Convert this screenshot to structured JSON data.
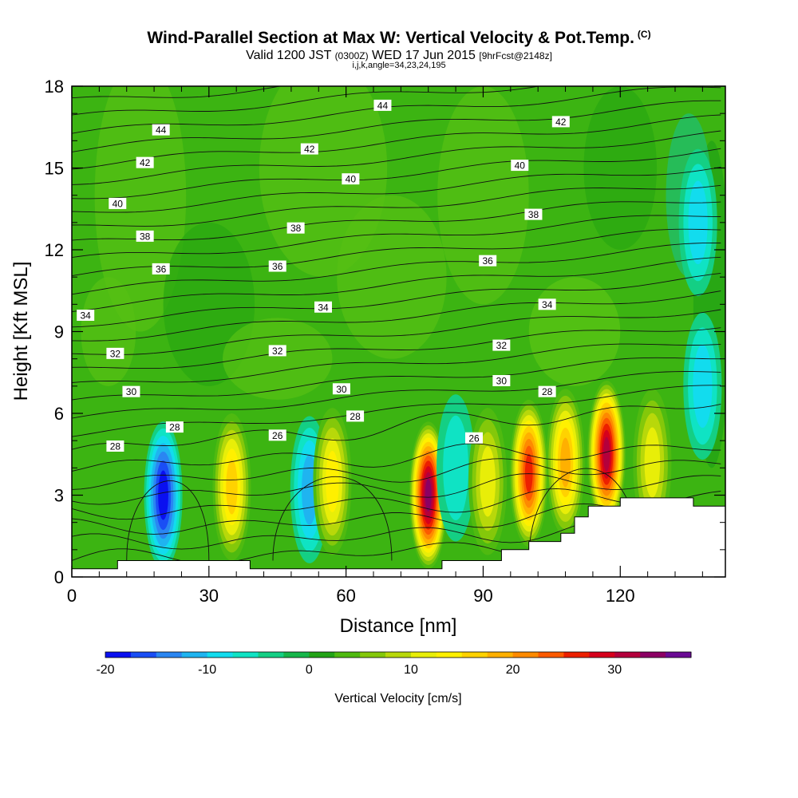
{
  "header": {
    "title": "Wind-Parallel Section at Max W: Vertical Velocity & Pot.Temp.",
    "title_mark": "(C)",
    "valid_prefix": "Valid 1200 JST",
    "valid_utc": "(0300Z)",
    "valid_date": "WED 17 Jun 2015",
    "forecast": "[9hrFcst@2148z]",
    "indices": "i,j,k,angle=34,23,24,195"
  },
  "chart_data": {
    "type": "heatmap",
    "xlabel": "Distance [nm]",
    "ylabel": "Height [Kft MSL]",
    "xlim": [
      0,
      143
    ],
    "ylim": [
      0,
      18
    ],
    "x_ticks": [
      "0",
      "30",
      "60",
      "90",
      "120"
    ],
    "y_ticks": [
      "0",
      "3",
      "6",
      "9",
      "12",
      "15",
      "18"
    ],
    "grid": false,
    "terrain_profile": [
      [
        0,
        0.3
      ],
      [
        10,
        0.3
      ],
      [
        10,
        0.6
      ],
      [
        39,
        0.6
      ],
      [
        39,
        0.3
      ],
      [
        81,
        0.3
      ],
      [
        81,
        0.6
      ],
      [
        94,
        0.6
      ],
      [
        94,
        1
      ],
      [
        100,
        1
      ],
      [
        100,
        1.3
      ],
      [
        107,
        1.3
      ],
      [
        107,
        1.6
      ],
      [
        110,
        1.6
      ],
      [
        110,
        2.2
      ],
      [
        113,
        2.2
      ],
      [
        113,
        2.6
      ],
      [
        120,
        2.6
      ],
      [
        120,
        2.9
      ],
      [
        136,
        2.9
      ],
      [
        136,
        2.6
      ],
      [
        143,
        2.6
      ]
    ],
    "vertical_velocity_cores": [
      {
        "x": 20,
        "y": 3.0,
        "w_cms": -19
      },
      {
        "x": 35,
        "y": 3.3,
        "w_cms": 17
      },
      {
        "x": 52,
        "y": 3.2,
        "w_cms": -12
      },
      {
        "x": 57,
        "y": 3.5,
        "w_cms": 14
      },
      {
        "x": 78,
        "y": 3.0,
        "w_cms": 33
      },
      {
        "x": 84,
        "y": 4.0,
        "w_cms": -6
      },
      {
        "x": 91,
        "y": 3.5,
        "w_cms": 11
      },
      {
        "x": 100,
        "y": 3.8,
        "w_cms": 26
      },
      {
        "x": 108,
        "y": 4.2,
        "w_cms": 18
      },
      {
        "x": 117,
        "y": 4.5,
        "w_cms": 32
      },
      {
        "x": 127,
        "y": 4.2,
        "w_cms": 12
      },
      {
        "x": 138,
        "y": 7.0,
        "w_cms": -8
      },
      {
        "x": 137,
        "y": 13.0,
        "w_cms": -9
      }
    ],
    "theta_contour_labels": [
      {
        "text": "44",
        "x": 19.5,
        "y": 16.4
      },
      {
        "text": "44",
        "x": 68,
        "y": 17.3
      },
      {
        "text": "42",
        "x": 107,
        "y": 16.7
      },
      {
        "text": "42",
        "x": 52,
        "y": 15.7
      },
      {
        "text": "42",
        "x": 16,
        "y": 15.2
      },
      {
        "text": "40",
        "x": 61,
        "y": 14.6
      },
      {
        "text": "40",
        "x": 98,
        "y": 15.1
      },
      {
        "text": "40",
        "x": 10,
        "y": 13.7
      },
      {
        "text": "38",
        "x": 16,
        "y": 12.5
      },
      {
        "text": "38",
        "x": 49,
        "y": 12.8
      },
      {
        "text": "38",
        "x": 101,
        "y": 13.3
      },
      {
        "text": "36",
        "x": 19.5,
        "y": 11.3
      },
      {
        "text": "36",
        "x": 45,
        "y": 11.4
      },
      {
        "text": "36",
        "x": 91,
        "y": 11.6
      },
      {
        "text": "34",
        "x": 3,
        "y": 9.6
      },
      {
        "text": "34",
        "x": 55,
        "y": 9.9
      },
      {
        "text": "34",
        "x": 104,
        "y": 10.0
      },
      {
        "text": "32",
        "x": 9.5,
        "y": 8.2
      },
      {
        "text": "32",
        "x": 45,
        "y": 8.3
      },
      {
        "text": "32",
        "x": 94,
        "y": 8.5
      },
      {
        "text": "30",
        "x": 13,
        "y": 6.8
      },
      {
        "text": "30",
        "x": 59,
        "y": 6.9
      },
      {
        "text": "30",
        "x": 94,
        "y": 7.2
      },
      {
        "text": "28",
        "x": 22.5,
        "y": 5.5
      },
      {
        "text": "28",
        "x": 62,
        "y": 5.9
      },
      {
        "text": "28",
        "x": 104,
        "y": 6.8
      },
      {
        "text": "28",
        "x": 9.5,
        "y": 4.8
      },
      {
        "text": "26",
        "x": 45,
        "y": 5.2
      },
      {
        "text": "26",
        "x": 88,
        "y": 5.1
      }
    ],
    "colorbar": {
      "title": "Vertical Velocity [cm/s]",
      "min": -20,
      "max": 35,
      "step": 2.5,
      "tick_labels": [
        "-20",
        "-10",
        "0",
        "10",
        "20",
        "30"
      ],
      "tick_values": [
        -20,
        -10,
        0,
        10,
        20,
        30
      ],
      "colors": [
        "#0a10f0",
        "#1a4ef5",
        "#2a86f2",
        "#1fb4f0",
        "#12dcee",
        "#0fe3c4",
        "#14cf84",
        "#16b64a",
        "#22a316",
        "#4fba10",
        "#84c80a",
        "#b8d80a",
        "#e8ee08",
        "#fff000",
        "#ffd200",
        "#ffb000",
        "#fe8a00",
        "#fc5a00",
        "#ec2000",
        "#d6001c",
        "#b4003c",
        "#8c0064",
        "#6a0a94"
      ]
    }
  }
}
